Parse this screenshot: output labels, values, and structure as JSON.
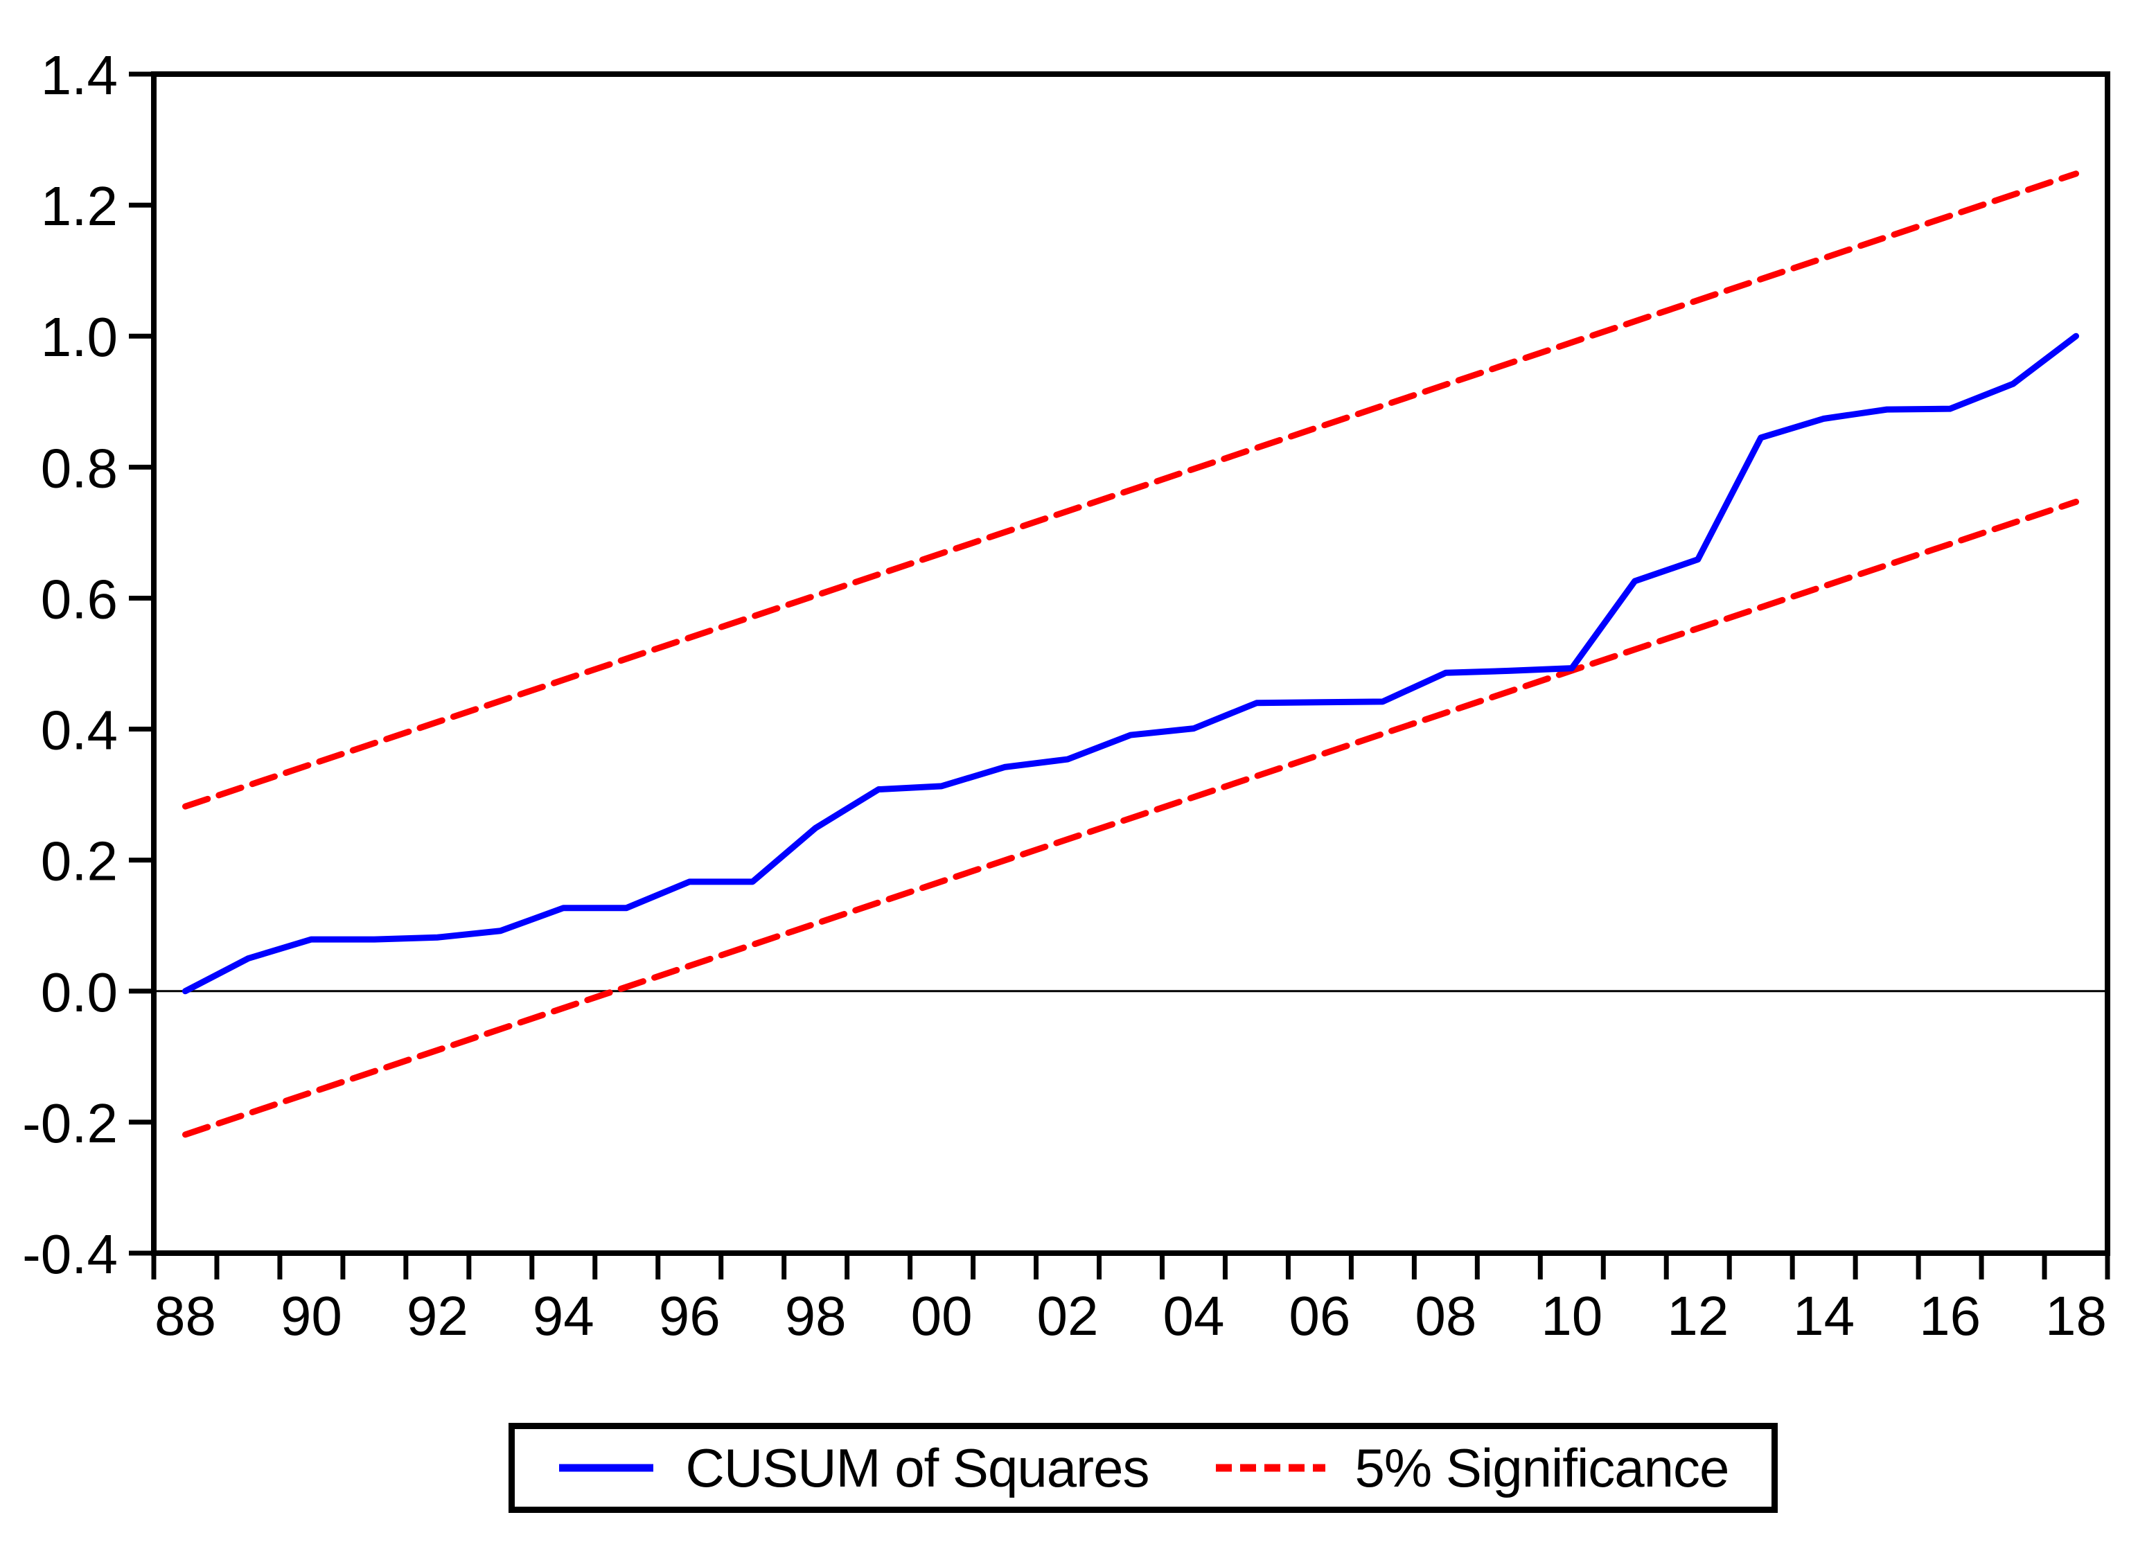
{
  "page": {
    "background_color": "#ffffff"
  },
  "chart_data": {
    "type": "line",
    "title": "",
    "xlabel": "",
    "ylabel": "",
    "xlim": [
      1987.5,
      2018.5
    ],
    "ylim": [
      -0.4,
      1.4
    ],
    "grid": false,
    "zero_line_value": 0.0,
    "axis_color": "#000000",
    "y_ticks": [
      {
        "value": 1.4,
        "label": "1.4"
      },
      {
        "value": 1.2,
        "label": "1.2"
      },
      {
        "value": 1.0,
        "label": "1.0"
      },
      {
        "value": 0.8,
        "label": "0.8"
      },
      {
        "value": 0.6,
        "label": "0.6"
      },
      {
        "value": 0.4,
        "label": "0.4"
      },
      {
        "value": 0.2,
        "label": "0.2"
      },
      {
        "value": 0.0,
        "label": "0.0"
      },
      {
        "value": -0.2,
        "label": "-0.2"
      },
      {
        "value": -0.4,
        "label": "-0.4"
      }
    ],
    "x_tick_interval_years": 1,
    "x_labels": [
      {
        "x": 1988,
        "label": "88"
      },
      {
        "x": 1990,
        "label": "90"
      },
      {
        "x": 1992,
        "label": "92"
      },
      {
        "x": 1994,
        "label": "94"
      },
      {
        "x": 1996,
        "label": "96"
      },
      {
        "x": 1998,
        "label": "98"
      },
      {
        "x": 2000,
        "label": "00"
      },
      {
        "x": 2002,
        "label": "02"
      },
      {
        "x": 2004,
        "label": "04"
      },
      {
        "x": 2006,
        "label": "06"
      },
      {
        "x": 2008,
        "label": "08"
      },
      {
        "x": 2010,
        "label": "10"
      },
      {
        "x": 2012,
        "label": "12"
      },
      {
        "x": 2014,
        "label": "14"
      },
      {
        "x": 2016,
        "label": "16"
      },
      {
        "x": 2018,
        "label": "18"
      }
    ],
    "series": [
      {
        "id": "cusum-of-squares",
        "name": "CUSUM of Squares",
        "color": "#0000ff",
        "style": "solid",
        "x": [
          1988,
          1989,
          1990,
          1991,
          1992,
          1993,
          1994,
          1995,
          1996,
          1997,
          1998,
          1999,
          2000,
          2001,
          2002,
          2003,
          2004,
          2005,
          2006,
          2007,
          2008,
          2009,
          2010,
          2011,
          2012,
          2013,
          2014,
          2015,
          2016,
          2017,
          2018
        ],
        "y": [
          0.0,
          0.05,
          0.079,
          0.079,
          0.082,
          0.092,
          0.127,
          0.127,
          0.167,
          0.167,
          0.249,
          0.308,
          0.313,
          0.342,
          0.354,
          0.391,
          0.401,
          0.44,
          0.441,
          0.442,
          0.486,
          0.489,
          0.493,
          0.626,
          0.659,
          0.845,
          0.874,
          0.888,
          0.889,
          0.927,
          1.0
        ]
      },
      {
        "id": "significance-upper",
        "name": "5% Significance (upper band)",
        "color": "#ff0000",
        "style": "dashed",
        "x": [
          1988,
          2018
        ],
        "y": [
          0.282,
          1.248
        ]
      },
      {
        "id": "significance-lower",
        "name": "5% Significance (lower band)",
        "color": "#ff0000",
        "style": "dashed",
        "x": [
          1988,
          2018
        ],
        "y": [
          -0.219,
          0.747
        ]
      }
    ],
    "legend": {
      "position": "bottom-center",
      "items": [
        {
          "label": "CUSUM of Squares",
          "color": "#0000ff",
          "dashed": false
        },
        {
          "label": "5% Significance",
          "color": "#ff0000",
          "dashed": true
        }
      ]
    }
  }
}
